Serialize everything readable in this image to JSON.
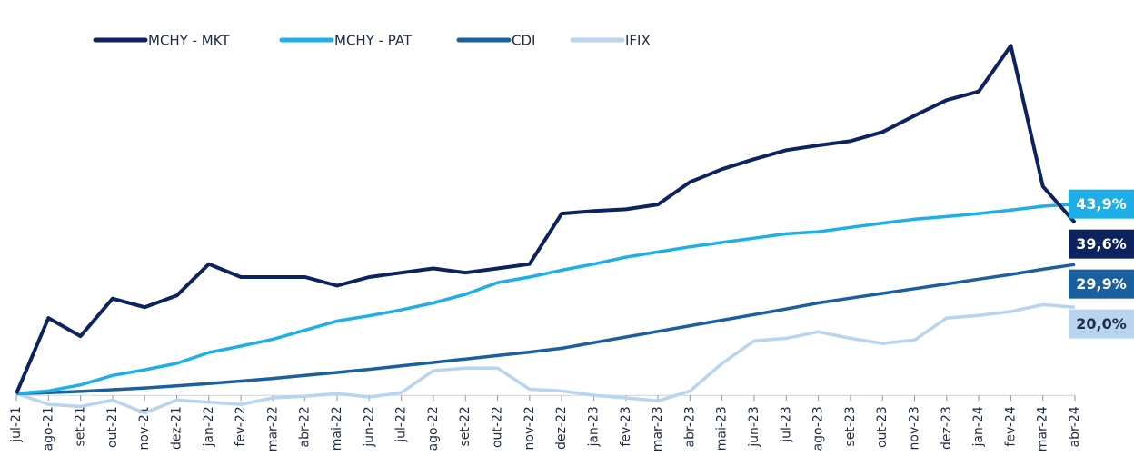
{
  "chart_data": {
    "type": "line",
    "categories": [
      "jul-21",
      "ago-21",
      "set-21",
      "out-21",
      "nov-21",
      "dez-21",
      "jan-22",
      "fev-22",
      "mar-22",
      "abr-22",
      "mai-22",
      "jun-22",
      "jul-22",
      "ago-22",
      "set-22",
      "out-22",
      "nov-22",
      "dez-22",
      "jan-23",
      "fev-23",
      "mar-23",
      "abr-23",
      "mai-23",
      "jun-23",
      "jul-23",
      "ago-23",
      "set-23",
      "out-23",
      "nov-23",
      "dez-23",
      "jan-24",
      "fev-24",
      "mar-24",
      "abr-24"
    ],
    "series": [
      {
        "name": "MCHY - MKT",
        "color": "#0d2360",
        "label_text_color": "#ffffff",
        "values": [
          0,
          17.5,
          13.3,
          22,
          20,
          22.7,
          30,
          27,
          27,
          27,
          25,
          27,
          28,
          29,
          28,
          29,
          30,
          41.7,
          42.3,
          42.7,
          43.8,
          49,
          52,
          54.3,
          56.4,
          57.5,
          58.5,
          60.6,
          64.4,
          68,
          70,
          80.6,
          48,
          39.6
        ],
        "value_labels": [
          null,
          null,
          null,
          null,
          null,
          null,
          null,
          null,
          null,
          null,
          null,
          null,
          null,
          null,
          null,
          null,
          null,
          null,
          null,
          null,
          null,
          null,
          null,
          null,
          null,
          null,
          null,
          null,
          null,
          null,
          null,
          null,
          null,
          "39,6%"
        ]
      },
      {
        "name": "MCHY - PAT",
        "color": "#1eaee8",
        "label_text_color": "#ffffff",
        "values": [
          0,
          0.6,
          2,
          4.2,
          5.5,
          7,
          9.5,
          11,
          12.6,
          14.7,
          16.8,
          18,
          19.4,
          21,
          23,
          25.7,
          27,
          28.6,
          30,
          31.6,
          32.8,
          34,
          35,
          36,
          37,
          37.5,
          38.5,
          39.5,
          40.4,
          41,
          41.7,
          42.5,
          43.4,
          43.9
        ],
        "value_labels": [
          null,
          null,
          null,
          null,
          null,
          null,
          null,
          null,
          null,
          null,
          null,
          null,
          null,
          null,
          null,
          null,
          null,
          null,
          null,
          null,
          null,
          null,
          null,
          null,
          null,
          null,
          null,
          null,
          null,
          null,
          null,
          null,
          null,
          "43,9%"
        ]
      },
      {
        "name": "CDI",
        "color": "#1a5fa0",
        "label_text_color": "#ffffff",
        "values": [
          0,
          0.2,
          0.5,
          0.9,
          1.3,
          1.8,
          2.3,
          2.9,
          3.5,
          4.2,
          4.9,
          5.6,
          6.4,
          7.2,
          8,
          8.8,
          9.6,
          10.5,
          11.8,
          13.1,
          14.4,
          15.7,
          17,
          18.3,
          19.6,
          21,
          22.1,
          23.2,
          24.3,
          25.4,
          26.5,
          27.6,
          28.8,
          29.9
        ],
        "value_labels": [
          null,
          null,
          null,
          null,
          null,
          null,
          null,
          null,
          null,
          null,
          null,
          null,
          null,
          null,
          null,
          null,
          null,
          null,
          null,
          null,
          null,
          null,
          null,
          null,
          null,
          null,
          null,
          null,
          null,
          null,
          null,
          null,
          null,
          "29,9%"
        ]
      },
      {
        "name": "IFIX",
        "color": "#b8d4ee",
        "label_text_color": "#1f2a44",
        "values": [
          0,
          -2.5,
          -3,
          -1.5,
          -4.5,
          -1.5,
          -2,
          -2.5,
          -1,
          -0.6,
          0,
          -0.8,
          0.2,
          5.3,
          5.9,
          5.9,
          1,
          0.6,
          -0.4,
          -1,
          -1.7,
          0.6,
          7,
          12.2,
          12.8,
          14.3,
          12.8,
          11.6,
          12.4,
          17.5,
          18.1,
          19,
          20.6,
          20
        ],
        "value_labels": [
          null,
          null,
          null,
          null,
          null,
          null,
          null,
          null,
          null,
          null,
          null,
          null,
          null,
          null,
          null,
          null,
          null,
          null,
          null,
          null,
          null,
          null,
          null,
          null,
          null,
          null,
          null,
          null,
          null,
          null,
          null,
          null,
          null,
          "20,0%"
        ]
      }
    ],
    "ylim": [
      -5,
      89.5
    ]
  }
}
